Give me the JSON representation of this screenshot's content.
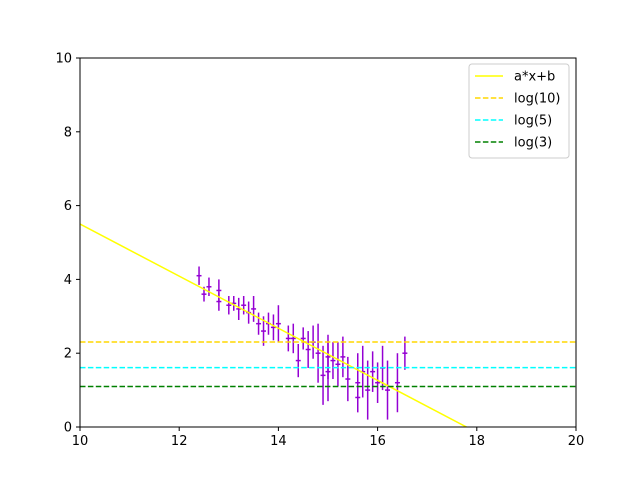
{
  "chart_data": {
    "type": "scatter",
    "title": "",
    "xlabel": "",
    "ylabel": "",
    "xlim": [
      10,
      20
    ],
    "ylim": [
      0,
      10
    ],
    "x_ticks": [
      "10",
      "12",
      "14",
      "16",
      "18",
      "20"
    ],
    "y_ticks": [
      "0",
      "2",
      "4",
      "6",
      "8",
      "10"
    ],
    "grid": false,
    "legend_position": "top-right",
    "lines": [
      {
        "name": "a*x+b",
        "kind": "fit",
        "slope": -0.706,
        "intercept": 12.56,
        "color": "#ffff00",
        "dash": "solid"
      },
      {
        "name": "log(10)",
        "kind": "hline",
        "y": 2.303,
        "color": "#ffd700",
        "dash": "dashed"
      },
      {
        "name": "log(5)",
        "kind": "hline",
        "y": 1.609,
        "color": "#00ffff",
        "dash": "dashed"
      },
      {
        "name": "log(3)",
        "kind": "hline",
        "y": 1.099,
        "color": "#008000",
        "dash": "dashed"
      }
    ],
    "errorbar_series": {
      "color": "#9400d3",
      "points": [
        {
          "x": 12.4,
          "y": 4.1,
          "xerr": 0.05,
          "yerr": 0.25
        },
        {
          "x": 12.5,
          "y": 3.6,
          "xerr": 0.05,
          "yerr": 0.2
        },
        {
          "x": 12.6,
          "y": 3.8,
          "xerr": 0.05,
          "yerr": 0.25
        },
        {
          "x": 12.8,
          "y": 3.4,
          "xerr": 0.05,
          "yerr": 0.25
        },
        {
          "x": 12.8,
          "y": 3.7,
          "xerr": 0.05,
          "yerr": 0.3
        },
        {
          "x": 13.0,
          "y": 3.3,
          "xerr": 0.05,
          "yerr": 0.25
        },
        {
          "x": 13.1,
          "y": 3.35,
          "xerr": 0.05,
          "yerr": 0.2
        },
        {
          "x": 13.2,
          "y": 3.2,
          "xerr": 0.05,
          "yerr": 0.3
        },
        {
          "x": 13.3,
          "y": 3.3,
          "xerr": 0.05,
          "yerr": 0.25
        },
        {
          "x": 13.4,
          "y": 3.1,
          "xerr": 0.05,
          "yerr": 0.3
        },
        {
          "x": 13.5,
          "y": 3.2,
          "xerr": 0.05,
          "yerr": 0.35
        },
        {
          "x": 13.6,
          "y": 2.8,
          "xerr": 0.05,
          "yerr": 0.3
        },
        {
          "x": 13.7,
          "y": 2.6,
          "xerr": 0.05,
          "yerr": 0.4
        },
        {
          "x": 13.8,
          "y": 2.8,
          "xerr": 0.05,
          "yerr": 0.3
        },
        {
          "x": 13.9,
          "y": 2.7,
          "xerr": 0.05,
          "yerr": 0.35
        },
        {
          "x": 14.0,
          "y": 2.8,
          "xerr": 0.05,
          "yerr": 0.5
        },
        {
          "x": 14.2,
          "y": 2.4,
          "xerr": 0.05,
          "yerr": 0.35
        },
        {
          "x": 14.3,
          "y": 2.4,
          "xerr": 0.05,
          "yerr": 0.4
        },
        {
          "x": 14.4,
          "y": 1.8,
          "xerr": 0.05,
          "yerr": 0.45
        },
        {
          "x": 14.5,
          "y": 2.4,
          "xerr": 0.05,
          "yerr": 0.3
        },
        {
          "x": 14.6,
          "y": 2.1,
          "xerr": 0.05,
          "yerr": 0.5
        },
        {
          "x": 14.7,
          "y": 2.3,
          "xerr": 0.05,
          "yerr": 0.45
        },
        {
          "x": 14.8,
          "y": 2.0,
          "xerr": 0.05,
          "yerr": 0.8
        },
        {
          "x": 14.9,
          "y": 1.4,
          "xerr": 0.05,
          "yerr": 0.8
        },
        {
          "x": 15.0,
          "y": 1.9,
          "xerr": 0.05,
          "yerr": 0.6
        },
        {
          "x": 15.0,
          "y": 1.5,
          "xerr": 0.05,
          "yerr": 0.8
        },
        {
          "x": 15.1,
          "y": 1.8,
          "xerr": 0.05,
          "yerr": 0.5
        },
        {
          "x": 15.2,
          "y": 1.7,
          "xerr": 0.05,
          "yerr": 0.6
        },
        {
          "x": 15.3,
          "y": 1.9,
          "xerr": 0.05,
          "yerr": 0.55
        },
        {
          "x": 15.4,
          "y": 1.3,
          "xerr": 0.05,
          "yerr": 0.6
        },
        {
          "x": 15.6,
          "y": 1.2,
          "xerr": 0.05,
          "yerr": 0.8
        },
        {
          "x": 15.6,
          "y": 0.8,
          "xerr": 0.05,
          "yerr": 0.4
        },
        {
          "x": 15.7,
          "y": 1.5,
          "xerr": 0.05,
          "yerr": 0.7
        },
        {
          "x": 15.8,
          "y": 1.0,
          "xerr": 0.05,
          "yerr": 0.8
        },
        {
          "x": 15.9,
          "y": 1.5,
          "xerr": 0.05,
          "yerr": 0.55
        },
        {
          "x": 16.0,
          "y": 1.2,
          "xerr": 0.05,
          "yerr": 0.55
        },
        {
          "x": 16.1,
          "y": 1.6,
          "xerr": 0.05,
          "yerr": 0.6
        },
        {
          "x": 16.2,
          "y": 1.0,
          "xerr": 0.05,
          "yerr": 0.8
        },
        {
          "x": 16.4,
          "y": 1.2,
          "xerr": 0.05,
          "yerr": 0.8
        },
        {
          "x": 16.55,
          "y": 2.0,
          "xerr": 0.05,
          "yerr": 0.45
        }
      ]
    }
  }
}
